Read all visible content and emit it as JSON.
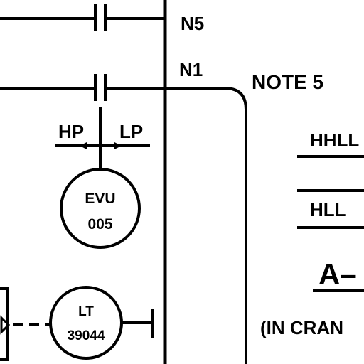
{
  "labels": {
    "n5": "N5",
    "n1": "N1",
    "note": "NOTE 5",
    "hp": "HP",
    "lp": "LP",
    "evu_tag": "EVU",
    "evu_num": "005",
    "lt_tag": "LT",
    "lt_num": "39044",
    "hhll": "HHLL",
    "hll": "HLL",
    "section": "A–",
    "crane_note": "(IN CRAN"
  },
  "colors": {
    "line": "#000000",
    "background": "#ffffff"
  }
}
